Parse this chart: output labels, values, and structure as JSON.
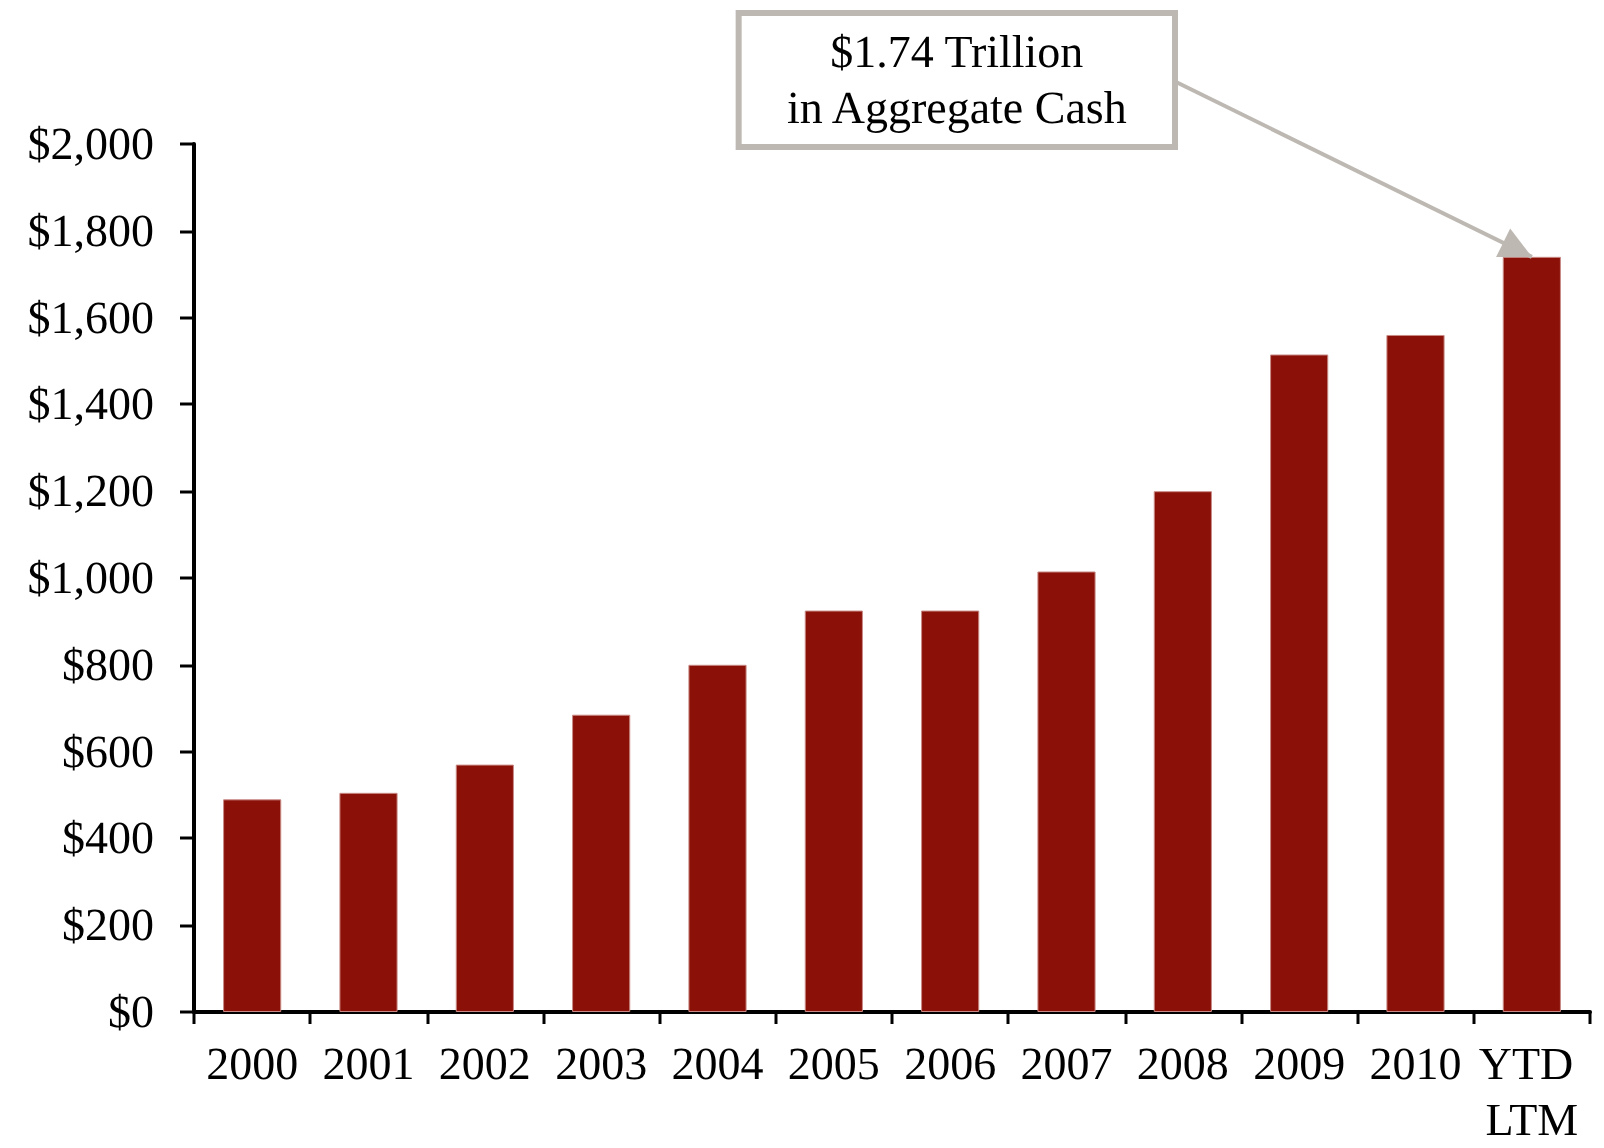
{
  "chart_data": {
    "type": "bar",
    "categories": [
      "2000",
      "2001",
      "2002",
      "2003",
      "2004",
      "2005",
      "2006",
      "2007",
      "2008",
      "2009",
      "2010",
      "YTD LTM"
    ],
    "values": [
      490,
      505,
      570,
      685,
      800,
      925,
      925,
      1015,
      1200,
      1515,
      1560,
      1740
    ],
    "color": "#8b1108",
    "ylim": [
      0,
      2000
    ],
    "yticks": [
      {
        "value": 0,
        "label": "$0"
      },
      {
        "value": 200,
        "label": "$200"
      },
      {
        "value": 400,
        "label": "$400"
      },
      {
        "value": 600,
        "label": "$600"
      },
      {
        "value": 800,
        "label": "$800"
      },
      {
        "value": 1000,
        "label": "$1,000"
      },
      {
        "value": 1200,
        "label": "$1,200"
      },
      {
        "value": 1400,
        "label": "$1,400"
      },
      {
        "value": 1600,
        "label": "$1,600"
      },
      {
        "value": 1800,
        "label": "$1,800"
      },
      {
        "value": 2000,
        "label": "$2,000"
      }
    ],
    "annotations": [
      {
        "text": "$1.74 Trillion\nin Aggregate Cash",
        "x": "YTD LTM",
        "y": 1740
      }
    ]
  }
}
